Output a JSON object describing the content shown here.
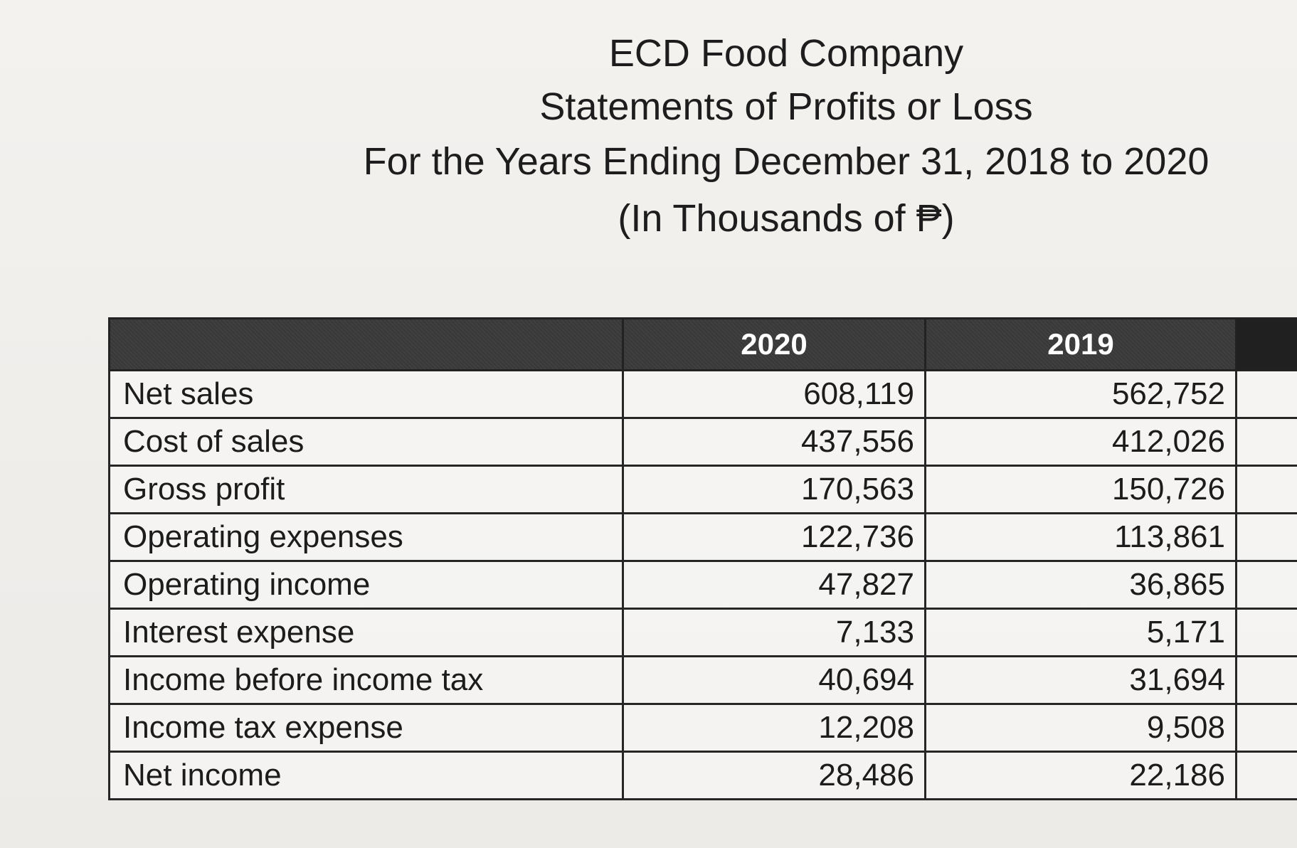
{
  "heading": {
    "company": "ECD Food Company",
    "statement": "Statements of Profits or Loss",
    "period": "For the Years Ending December 31, 2018 to 2020",
    "units": "(In Thousands of ₱)"
  },
  "table": {
    "columns": [
      "",
      "2020",
      "2019",
      ""
    ],
    "rows": [
      {
        "label": "Net sales",
        "y2020": "608,119",
        "y2019": "562,752"
      },
      {
        "label": "Cost of sales",
        "y2020": "437,556",
        "y2019": "412,026"
      },
      {
        "label": "Gross profit",
        "y2020": "170,563",
        "y2019": "150,726"
      },
      {
        "label": "Operating expenses",
        "y2020": "122,736",
        "y2019": "113,861"
      },
      {
        "label": "Operating income",
        "y2020": "47,827",
        "y2019": "36,865"
      },
      {
        "label": "Interest expense",
        "y2020": "7,133",
        "y2019": "5,171"
      },
      {
        "label": "Income before income tax",
        "y2020": "40,694",
        "y2019": "31,694"
      },
      {
        "label": "Income tax expense",
        "y2020": "12,208",
        "y2019": "9,508"
      },
      {
        "label": "Net income",
        "y2020": "28,486",
        "y2019": "22,186"
      }
    ]
  }
}
